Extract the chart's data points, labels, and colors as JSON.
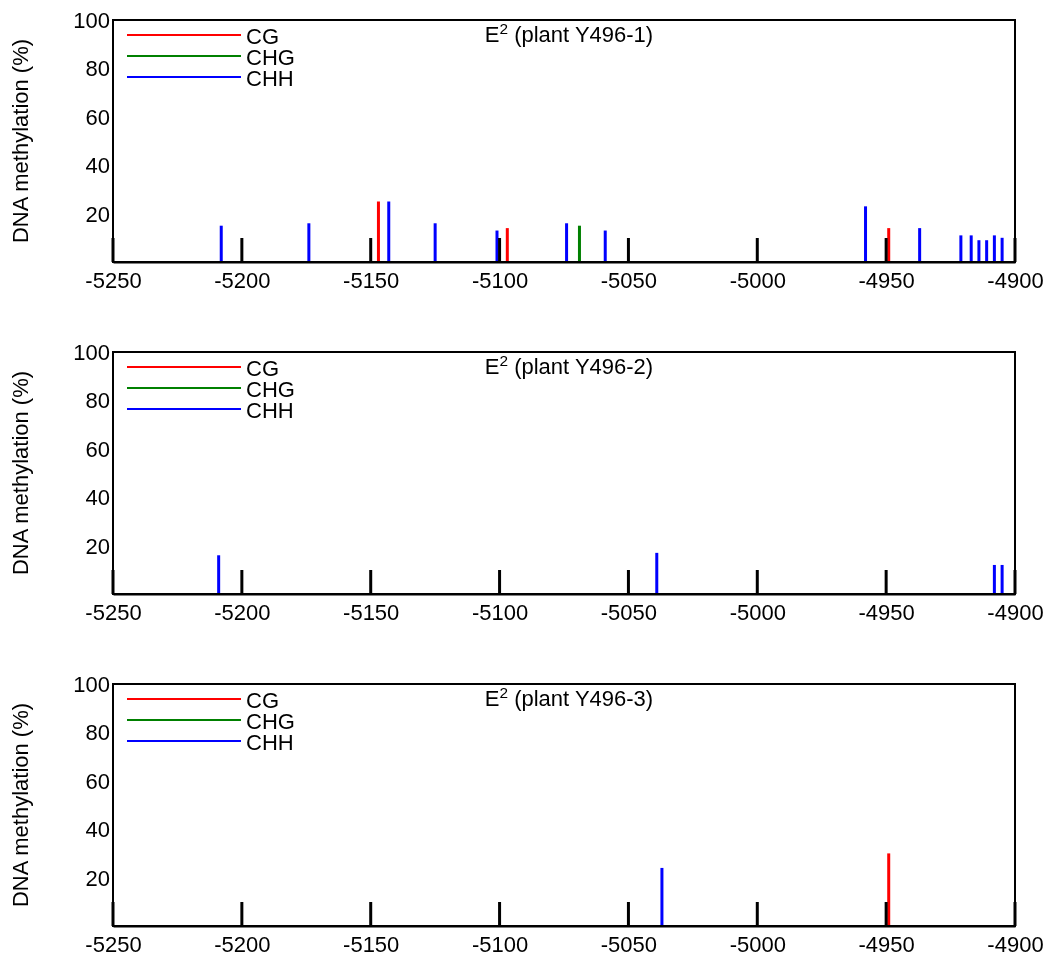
{
  "chart_data": [
    {
      "type": "bar",
      "title": "E$^{2}$ (plant Y496-1)",
      "ylabel": "DNA methylation (%)",
      "xlim": [
        -5250,
        -4900
      ],
      "xticks": [
        -5250,
        -5200,
        -5150,
        -5100,
        -5050,
        -5000,
        -4950,
        -4900
      ],
      "ylim": [
        0,
        100
      ],
      "yticks": [
        20,
        40,
        60,
        80,
        100
      ],
      "grid": false,
      "legend": "top left",
      "series": [
        {
          "name": "CG",
          "color": "#ff0000",
          "x": [
            -5147,
            -5097,
            -4949
          ],
          "values": [
            25,
            14,
            14
          ]
        },
        {
          "name": "CHG",
          "color": "#008000",
          "x": [
            -5069
          ],
          "values": [
            15
          ]
        },
        {
          "name": "CHH",
          "color": "#0000ff",
          "x": [
            -5208,
            -5174,
            -5143,
            -5125,
            -5101,
            -5074,
            -5059,
            -4958,
            -4937,
            -4921,
            -4917,
            -4914,
            -4911,
            -4908,
            -4905
          ],
          "values": [
            15,
            16,
            25,
            16,
            13,
            16,
            13,
            23,
            14,
            11,
            11,
            9,
            9,
            11,
            10
          ]
        }
      ]
    },
    {
      "type": "bar",
      "title": "E$^{2}$ (plant Y496-2)",
      "ylabel": "DNA methylation (%)",
      "xlim": [
        -5250,
        -4900
      ],
      "xticks": [
        -5250,
        -5200,
        -5150,
        -5100,
        -5050,
        -5000,
        -4950,
        -4900
      ],
      "ylim": [
        0,
        100
      ],
      "yticks": [
        20,
        40,
        60,
        80,
        100
      ],
      "grid": false,
      "legend": "top left",
      "series": [
        {
          "name": "CG",
          "color": "#ff0000"
        },
        {
          "name": "CHG",
          "color": "#008000"
        },
        {
          "name": "CHH",
          "color": "#0000ff",
          "x": [
            -5209,
            -5039,
            -4908,
            -4905
          ],
          "values": [
            16,
            17,
            12,
            12
          ]
        }
      ]
    },
    {
      "type": "bar",
      "title": "E$^{2}$ (plant Y496-3)",
      "ylabel": "DNA methylation (%)",
      "xlim": [
        -5250,
        -4900
      ],
      "xticks": [
        -5250,
        -5200,
        -5150,
        -5100,
        -5050,
        -5000,
        -4950,
        -4900
      ],
      "ylim": [
        0,
        100
      ],
      "yticks": [
        20,
        40,
        60,
        80,
        100
      ],
      "grid": false,
      "legend": "top left",
      "series": [
        {
          "name": "CG",
          "color": "#ff0000",
          "x": [
            -4949
          ],
          "values": [
            30
          ]
        },
        {
          "name": "CHG",
          "color": "#008000"
        },
        {
          "name": "CHH",
          "color": "#0000ff",
          "x": [
            -5037
          ],
          "values": [
            24
          ]
        }
      ]
    }
  ]
}
